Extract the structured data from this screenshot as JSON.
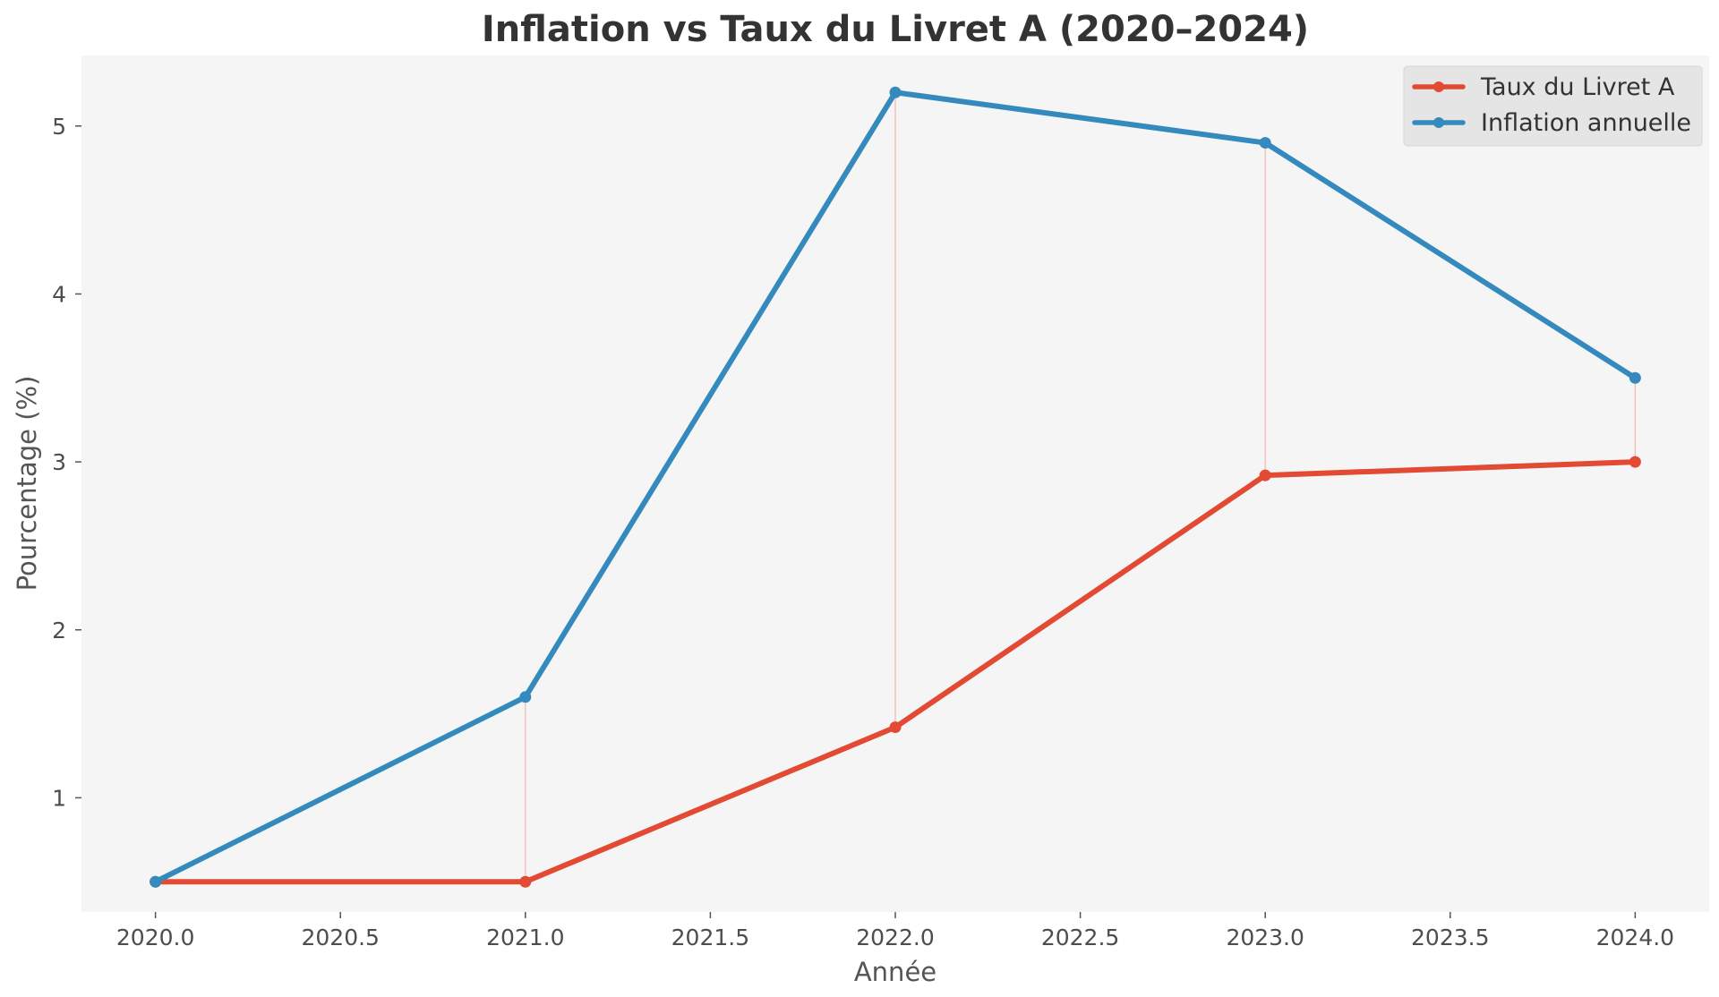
{
  "chart_data": {
    "type": "line",
    "title": "Inflation vs Taux du Livret A (2020–2024)",
    "xlabel": "Année",
    "ylabel": "Pourcentage (%)",
    "x": [
      2020,
      2021,
      2022,
      2023,
      2024
    ],
    "xlim": [
      2019.8,
      2024.2
    ],
    "ylim": [
      0.32,
      5.42
    ],
    "xticks": [
      "2020.0",
      "2020.5",
      "2021.0",
      "2021.5",
      "2022.0",
      "2022.5",
      "2023.0",
      "2023.5",
      "2024.0"
    ],
    "yticks": [
      "1",
      "2",
      "3",
      "4",
      "5"
    ],
    "series": [
      {
        "name": "Taux du Livret A",
        "values": [
          0.5,
          0.5,
          1.42,
          2.92,
          3.0
        ],
        "color": "#E24A33"
      },
      {
        "name": "Inflation annuelle",
        "values": [
          0.5,
          1.6,
          5.2,
          4.9,
          3.5
        ],
        "color": "#348ABD"
      }
    ],
    "gap_lines": true,
    "gap_line_color": "#f4b6ae",
    "grid": false,
    "legend_position": "top-right",
    "plot_background": "#f5f5f5"
  }
}
